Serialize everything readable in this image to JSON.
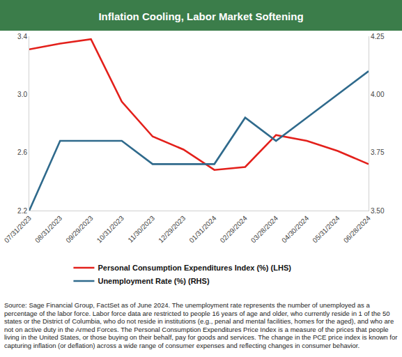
{
  "chart_data": {
    "type": "line",
    "title": "Inflation Cooling, Labor Market Softening",
    "categories": [
      "07/31/2023",
      "08/31/2023",
      "09/29/2023",
      "10/31/2023",
      "11/30/2023",
      "12/29/2023",
      "01/31/2024",
      "02/29/2024",
      "03/28/2024",
      "04/30/2024",
      "05/31/2024",
      "06/28/2024"
    ],
    "series": [
      {
        "name": "Personal Consumption Expenditures Index (%) (LHS)",
        "color": "#e3201b",
        "axis": "y",
        "line_style": "solid",
        "values": [
          3.31,
          3.35,
          3.38,
          2.95,
          2.71,
          2.62,
          2.48,
          2.5,
          2.72,
          2.68,
          2.61,
          2.52
        ]
      },
      {
        "name": "Unemployment Rate (%) (RHS)",
        "color": "#2f6a8c",
        "axis": "y2",
        "line_style": "solid",
        "values": [
          3.5,
          3.8,
          3.8,
          3.8,
          3.7,
          3.7,
          3.7,
          3.9,
          3.8,
          3.9,
          4.0,
          4.1
        ]
      }
    ],
    "ylim": [
      2.2,
      3.4
    ],
    "yticks": [
      2.2,
      2.6,
      {
        "value": 3,
        "label": "3.0"
      },
      3.4
    ],
    "y2lim": [
      3.5,
      4.25
    ],
    "y2ticks": [
      {
        "value": 3.5,
        "label": "3.50"
      },
      3.75,
      {
        "value": 4,
        "label": "4.00"
      },
      4.25
    ],
    "grid": false,
    "legend": "bottom",
    "note": "Source: Sage Financial Group, FactSet as of June 2024. The unemployment rate represents the number of unemployed as a percentage of the labor force. Labor force data are restricted to people 16 years of age and older, who currently reside in 1 of the 50 states or the District of Columbia, who do not reside in institutions (e.g., penal and mental facilities, homes for the aged), and who are not on active duty in the Armed Forces. The Personal Consumption Expenditures Price Index is a measure of the prices that people living in the United States, or those buying on their behalf, pay for goods and services. The change in the PCE price index is known for capturing inflation (or deflation) across a wide range of consumer expenses and reflecting changes in consumer behavior."
  }
}
